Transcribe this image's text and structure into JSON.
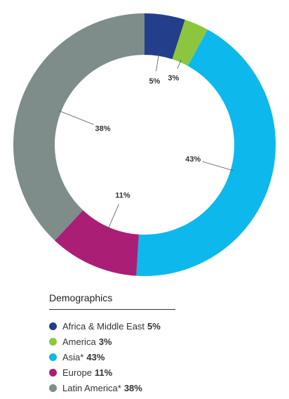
{
  "chart_data": {
    "type": "pie",
    "style": "donut",
    "categories": [
      "Africa & Middle East",
      "America",
      "Asia*",
      "Europe",
      "Latin America*"
    ],
    "values": [
      5,
      3,
      43,
      11,
      38
    ],
    "value_labels": [
      "5%",
      "3%",
      "43%",
      "11%",
      "38%"
    ],
    "colors": [
      "#233e8b",
      "#8cc63f",
      "#0db8ec",
      "#ab1e76",
      "#7e8c8a"
    ],
    "title": "",
    "legend_title": "Demographics",
    "legend_position": "bottom-left",
    "grid": false
  },
  "legend": {
    "title": "Demographics",
    "items": [
      {
        "label": "Africa & Middle East",
        "value": "5%"
      },
      {
        "label": "America",
        "value": "3%"
      },
      {
        "label": "Asia*",
        "value": "43%"
      },
      {
        "label": "Europe",
        "value": "11%"
      },
      {
        "label": "Latin America*",
        "value": "38%"
      }
    ]
  }
}
